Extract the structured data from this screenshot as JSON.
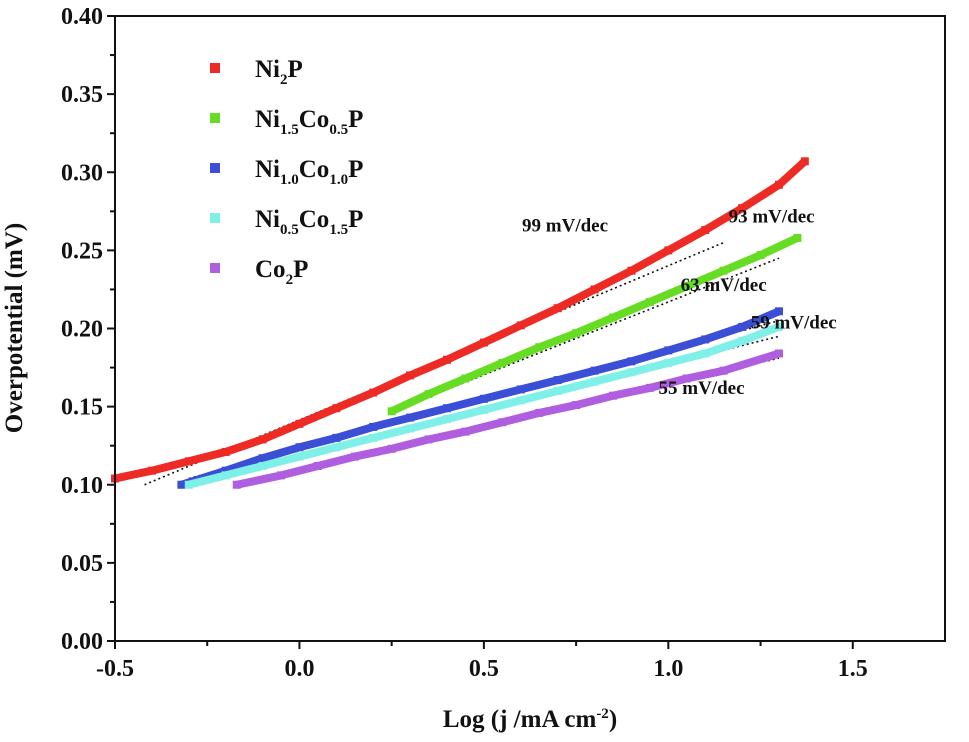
{
  "chart_data": {
    "type": "line",
    "xlabel": "Log (j /mA cm",
    "xlabel_sup": "-2",
    "xlabel_suffix": ")",
    "ylabel": "Overpotential (mV)",
    "xlim": [
      -0.5,
      1.75
    ],
    "ylim": [
      0.0,
      0.4
    ],
    "x_ticks": [
      "-0.5",
      "0.0",
      "0.5",
      "1.0",
      "1.5"
    ],
    "y_ticks": [
      "0.00",
      "0.05",
      "0.10",
      "0.15",
      "0.20",
      "0.25",
      "0.30",
      "0.35",
      "0.40"
    ],
    "grid": false,
    "legend_position": "top-left",
    "series": [
      {
        "name": "Ni2P",
        "label_parts": [
          [
            "Ni",
            ""
          ],
          [
            "2",
            "sub"
          ],
          [
            "P",
            ""
          ]
        ],
        "color": "#ee2a24",
        "x": [
          -0.5,
          -0.4,
          -0.3,
          -0.2,
          -0.1,
          0.0,
          0.1,
          0.2,
          0.3,
          0.4,
          0.5,
          0.6,
          0.7,
          0.8,
          0.9,
          1.0,
          1.1,
          1.2,
          1.3,
          1.37
        ],
        "y": [
          0.104,
          0.109,
          0.115,
          0.121,
          0.129,
          0.139,
          0.149,
          0.159,
          0.17,
          0.18,
          0.191,
          0.202,
          0.213,
          0.225,
          0.237,
          0.25,
          0.263,
          0.277,
          0.292,
          0.307
        ]
      },
      {
        "name": "Ni1.5Co0.5P",
        "label_parts": [
          [
            "Ni",
            ""
          ],
          [
            "1.5",
            "sub"
          ],
          [
            "Co",
            ""
          ],
          [
            "0.5",
            "sub"
          ],
          [
            "P",
            ""
          ]
        ],
        "color": "#66dd22",
        "x": [
          0.25,
          0.35,
          0.45,
          0.55,
          0.65,
          0.75,
          0.85,
          0.95,
          1.05,
          1.15,
          1.25,
          1.35
        ],
        "y": [
          0.147,
          0.158,
          0.168,
          0.178,
          0.188,
          0.197,
          0.207,
          0.217,
          0.227,
          0.237,
          0.247,
          0.258
        ]
      },
      {
        "name": "Ni1.0Co1.0P",
        "label_parts": [
          [
            "Ni",
            ""
          ],
          [
            "1.0",
            "sub"
          ],
          [
            "Co",
            ""
          ],
          [
            "1.0",
            "sub"
          ],
          [
            "P",
            ""
          ]
        ],
        "color": "#3b4fd6",
        "x": [
          -0.32,
          -0.2,
          -0.1,
          0.0,
          0.1,
          0.2,
          0.3,
          0.4,
          0.5,
          0.6,
          0.7,
          0.8,
          0.9,
          1.0,
          1.1,
          1.2,
          1.3
        ],
        "y": [
          0.1,
          0.109,
          0.117,
          0.124,
          0.13,
          0.137,
          0.143,
          0.149,
          0.155,
          0.161,
          0.167,
          0.173,
          0.179,
          0.186,
          0.193,
          0.201,
          0.211
        ]
      },
      {
        "name": "Ni0.5Co1.5P",
        "label_parts": [
          [
            "Ni",
            ""
          ],
          [
            "0.5",
            "sub"
          ],
          [
            "Co",
            ""
          ],
          [
            "1.5",
            "sub"
          ],
          [
            "P",
            ""
          ]
        ],
        "color": "#7ff0e8",
        "x": [
          -0.3,
          -0.2,
          -0.1,
          0.0,
          0.1,
          0.2,
          0.3,
          0.4,
          0.5,
          0.6,
          0.7,
          0.8,
          0.9,
          1.0,
          1.1,
          1.2,
          1.3
        ],
        "y": [
          0.1,
          0.106,
          0.112,
          0.118,
          0.124,
          0.13,
          0.136,
          0.142,
          0.148,
          0.154,
          0.16,
          0.166,
          0.172,
          0.178,
          0.184,
          0.192,
          0.201
        ]
      },
      {
        "name": "Co2P",
        "label_parts": [
          [
            "Co",
            ""
          ],
          [
            "2",
            "sub"
          ],
          [
            "P",
            ""
          ]
        ],
        "color": "#b05ee0",
        "x": [
          -0.17,
          -0.05,
          0.05,
          0.15,
          0.25,
          0.35,
          0.45,
          0.55,
          0.65,
          0.75,
          0.85,
          0.95,
          1.05,
          1.15,
          1.3
        ],
        "y": [
          0.1,
          0.106,
          0.112,
          0.118,
          0.123,
          0.129,
          0.134,
          0.14,
          0.146,
          0.151,
          0.157,
          0.162,
          0.168,
          0.173,
          0.184
        ]
      }
    ],
    "fit_lines": [
      {
        "x": [
          -0.42,
          1.15
        ],
        "y": [
          0.1,
          0.255
        ]
      },
      {
        "x": [
          0.25,
          1.3
        ],
        "y": [
          0.147,
          0.245
        ]
      },
      {
        "x": [
          -0.3,
          1.3
        ],
        "y": [
          0.104,
          0.205
        ]
      },
      {
        "x": [
          -0.3,
          1.3
        ],
        "y": [
          0.101,
          0.195
        ]
      },
      {
        "x": [
          -0.17,
          1.3
        ],
        "y": [
          0.101,
          0.181
        ]
      }
    ],
    "annotations": [
      {
        "text": "99 mV/dec",
        "x": 0.72,
        "y": 0.262
      },
      {
        "text": "93 mV/dec",
        "x": 1.28,
        "y": 0.268
      },
      {
        "text": "63 mV/dec",
        "x": 1.15,
        "y": 0.224
      },
      {
        "text": "59 mV/dec",
        "x": 1.34,
        "y": 0.2
      },
      {
        "text": "55 mV/dec",
        "x": 1.09,
        "y": 0.158
      }
    ]
  }
}
